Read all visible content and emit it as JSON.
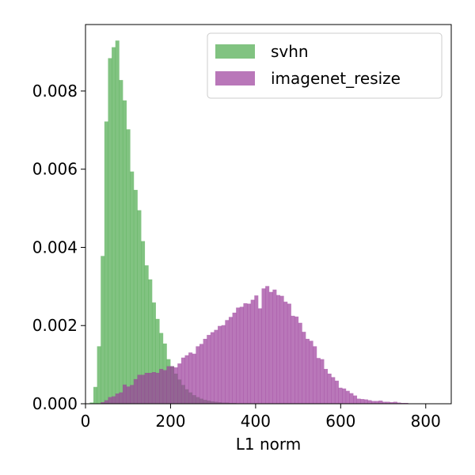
{
  "chart_data": {
    "type": "histogram",
    "title": "",
    "xlabel": "L1 norm",
    "ylabel": "",
    "xlim": [
      0,
      860
    ],
    "ylim": [
      0,
      0.0097
    ],
    "x_ticks": [
      0,
      200,
      400,
      600,
      800
    ],
    "x_tick_labels": [
      "0",
      "200",
      "400",
      "600",
      "800"
    ],
    "y_ticks": [
      0,
      0.002,
      0.004,
      0.006,
      0.008
    ],
    "y_tick_labels": [
      "0.000",
      "0.002",
      "0.004",
      "0.006",
      "0.008"
    ],
    "grid": false,
    "legend_position": "top-right",
    "series": [
      {
        "name": "svhn",
        "color": "#4caa4c",
        "bin_start": 10,
        "bin_width": 8.6,
        "values": [
          3e-05,
          0.00043,
          0.00147,
          0.00378,
          0.00722,
          0.00884,
          0.00912,
          0.00929,
          0.00828,
          0.00776,
          0.00702,
          0.00594,
          0.00547,
          0.00495,
          0.00416,
          0.00354,
          0.00318,
          0.00259,
          0.00217,
          0.00181,
          0.00154,
          0.00114,
          0.00096,
          0.00077,
          0.00062,
          0.00048,
          0.00037,
          0.00029,
          0.00022,
          0.00017,
          0.00013,
          0.0001,
          8e-05,
          6e-05,
          5e-05,
          4e-05,
          3e-05,
          3e-05,
          2e-05,
          2e-05,
          1e-05,
          1e-05,
          1e-05,
          1e-05,
          1e-05,
          0.0,
          0.0,
          0.0,
          0.0,
          0.0,
          0.0,
          0.0,
          0.0,
          0.0,
          0.0,
          0.0,
          0.0,
          0.0,
          0.0,
          0.0,
          0.0,
          0.0,
          0.0,
          0.0,
          0.0,
          0.0,
          0.0,
          0.0,
          0.0,
          0.0,
          0.0,
          0.0,
          0.0,
          0.0,
          0.0,
          0.0,
          0.0,
          0.0,
          0.0,
          0.0,
          0.0,
          0.0,
          0.0,
          0.0,
          0.0,
          0.0,
          0.0,
          0.0,
          0.0,
          0.0,
          0.0,
          0.0,
          0.0,
          0.0,
          0.0,
          0.0,
          0.0,
          0.0,
          0.0,
          0.0
        ]
      },
      {
        "name": "imagenet_resize",
        "color": "#9b3d9b",
        "bin_start": 10,
        "bin_width": 8.6,
        "values": [
          0.0,
          0.0,
          0.0,
          4e-05,
          9e-05,
          0.00017,
          0.00019,
          0.00026,
          0.00029,
          0.00049,
          0.00044,
          0.00048,
          0.00063,
          0.00074,
          0.00074,
          0.00079,
          0.00079,
          0.00081,
          0.00079,
          0.00089,
          0.00086,
          0.00096,
          0.00096,
          0.00093,
          0.00103,
          0.00118,
          0.00124,
          0.00131,
          0.00128,
          0.00147,
          0.00153,
          0.00166,
          0.00176,
          0.00183,
          0.00189,
          0.00199,
          0.00201,
          0.00214,
          0.00222,
          0.00233,
          0.00246,
          0.00248,
          0.00257,
          0.00256,
          0.00266,
          0.00277,
          0.00244,
          0.00295,
          0.00301,
          0.00286,
          0.00292,
          0.00278,
          0.00276,
          0.00261,
          0.00256,
          0.00225,
          0.00223,
          0.00207,
          0.00184,
          0.00166,
          0.00161,
          0.00147,
          0.00117,
          0.00114,
          0.00089,
          0.00077,
          0.00068,
          0.00059,
          0.00041,
          0.00039,
          0.00033,
          0.00027,
          0.00021,
          0.00013,
          0.00012,
          0.00011,
          9e-05,
          7e-05,
          7e-05,
          8e-05,
          5e-05,
          5e-05,
          4e-05,
          5e-05,
          3e-05,
          2e-05,
          2e-05,
          1e-05,
          1e-05,
          1e-05,
          1e-05,
          0.0,
          0.0,
          0.0,
          0.0,
          0.0,
          0.0,
          0.0,
          0.0,
          0.0
        ]
      }
    ]
  }
}
